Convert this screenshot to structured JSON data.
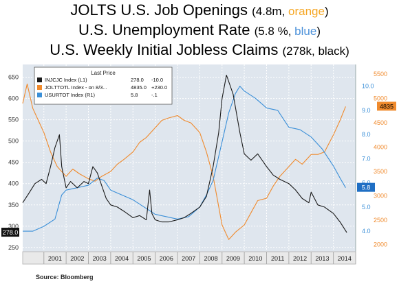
{
  "titles": {
    "line1_main": "JOLTS U.S. Job Openings",
    "line1_paren_open": "(4.8m, ",
    "line1_colorword": "orange",
    "line1_paren_close": ")",
    "line2_main": "U.S. Unemployment Rate",
    "line2_paren_open": "(5.8 %, ",
    "line2_colorword": "blue",
    "line2_paren_close": ")",
    "line3_main": "U.S. Weekly Initial Jobless Claims",
    "line3_paren": "(278k, black)"
  },
  "source": "Source:  Bloomberg",
  "colors": {
    "jobless": "#1a1a1a",
    "jolts": "#f08a2c",
    "unemployment": "#3a8fd8",
    "plot_background": "#dfe6ee"
  },
  "chart_data": {
    "type": "line",
    "x_labels": [
      "2001",
      "2002",
      "2003",
      "2004",
      "2005",
      "2006",
      "2007",
      "2008",
      "2009",
      "2010",
      "2011",
      "2012",
      "2013",
      "2014"
    ],
    "xlim": [
      2000.05,
      2015.0
    ],
    "legend": {
      "header": "Last Price",
      "position": "top-left",
      "rows": [
        {
          "name": "INJCJC Index  (L1)",
          "last": "278.0",
          "change": "-10.0"
        },
        {
          "name": "JOLTTOTL Index - on 8/3...",
          "last": "4835.0",
          "change": "+230.0"
        },
        {
          "name": "USURTOT Index  (R1)",
          "last": "5.8",
          "change": "-.1"
        }
      ]
    },
    "axes": {
      "left": {
        "lim": [
          240,
          680
        ],
        "ticks": [
          250,
          300,
          350,
          400,
          450,
          500,
          550,
          600,
          650
        ],
        "series": "jobless"
      },
      "right1": {
        "lim": [
          3.15,
          10.9
        ],
        "ticks": [
          "4.0",
          "5.0",
          "6.0",
          "7.0",
          "8.0",
          "9.0",
          "10.0"
        ],
        "series": "unemployment"
      },
      "right2": {
        "lim": [
          1850,
          5700
        ],
        "ticks": [
          "2000",
          "2500",
          "3000",
          "3500",
          "4000",
          "4500",
          "5000",
          "5500"
        ],
        "series": "jolts"
      }
    },
    "last_value_labels": {
      "jobless": "278.0",
      "jolts": "4835",
      "unemployment": "5.8"
    },
    "series": [
      {
        "key": "jobless",
        "axis": "left",
        "x": [
          2000.05,
          2000.3,
          2000.6,
          2000.9,
          2001.1,
          2001.3,
          2001.5,
          2001.7,
          2001.8,
          2002.0,
          2002.2,
          2002.5,
          2002.8,
          2003.0,
          2003.2,
          2003.4,
          2003.6,
          2003.8,
          2004.0,
          2004.3,
          2004.6,
          2005.0,
          2005.3,
          2005.6,
          2005.75,
          2005.85,
          2006.0,
          2006.3,
          2006.6,
          2007.0,
          2007.3,
          2007.6,
          2008.0,
          2008.3,
          2008.6,
          2008.85,
          2009.0,
          2009.2,
          2009.5,
          2009.8,
          2010.0,
          2010.3,
          2010.6,
          2011.0,
          2011.3,
          2011.6,
          2012.0,
          2012.3,
          2012.6,
          2012.9,
          2013.0,
          2013.3,
          2013.6,
          2014.0,
          2014.3,
          2014.6
        ],
        "y": [
          355,
          375,
          400,
          410,
          400,
          440,
          485,
          515,
          440,
          390,
          405,
          390,
          405,
          400,
          440,
          425,
          395,
          365,
          350,
          345,
          335,
          320,
          325,
          315,
          385,
          330,
          315,
          310,
          310,
          315,
          320,
          330,
          345,
          370,
          440,
          520,
          600,
          655,
          610,
          520,
          470,
          455,
          470,
          440,
          420,
          410,
          400,
          385,
          365,
          355,
          380,
          350,
          345,
          330,
          310,
          285
        ]
      },
      {
        "key": "jolts",
        "axis": "right2",
        "x": [
          2000.05,
          2000.25,
          2000.5,
          2000.8,
          2001.0,
          2001.3,
          2001.6,
          2002.0,
          2002.3,
          2002.6,
          2003.0,
          2003.3,
          2003.6,
          2004.0,
          2004.3,
          2004.6,
          2005.0,
          2005.3,
          2005.6,
          2006.0,
          2006.3,
          2006.6,
          2007.0,
          2007.3,
          2007.6,
          2008.0,
          2008.3,
          2008.6,
          2009.0,
          2009.3,
          2009.6,
          2010.0,
          2010.3,
          2010.6,
          2011.0,
          2011.3,
          2011.6,
          2012.0,
          2012.3,
          2012.6,
          2013.0,
          2013.3,
          2013.6,
          2014.0,
          2014.3,
          2014.55
        ],
        "y": [
          4900,
          5300,
          4800,
          4500,
          4300,
          3900,
          3600,
          3400,
          3550,
          3450,
          3350,
          3300,
          3400,
          3500,
          3650,
          3750,
          3900,
          4100,
          4200,
          4400,
          4550,
          4600,
          4650,
          4550,
          4500,
          4300,
          3900,
          3400,
          2400,
          2100,
          2250,
          2400,
          2650,
          2900,
          2950,
          3200,
          3400,
          3600,
          3750,
          3650,
          3850,
          3850,
          3900,
          4250,
          4550,
          4835
        ]
      },
      {
        "key": "unemployment",
        "axis": "right1",
        "x": [
          2000.05,
          2000.5,
          2001.0,
          2001.5,
          2001.8,
          2002.0,
          2002.5,
          2003.0,
          2003.4,
          2003.7,
          2004.0,
          2004.5,
          2005.0,
          2005.5,
          2006.0,
          2006.5,
          2007.0,
          2007.5,
          2008.0,
          2008.3,
          2008.6,
          2009.0,
          2009.3,
          2009.6,
          2009.8,
          2010.0,
          2010.5,
          2011.0,
          2011.5,
          2012.0,
          2012.5,
          2013.0,
          2013.5,
          2014.0,
          2014.3,
          2014.55
        ],
        "y": [
          4.0,
          4.0,
          4.2,
          4.5,
          5.5,
          5.7,
          5.8,
          5.9,
          6.2,
          6.1,
          5.7,
          5.5,
          5.3,
          5.0,
          4.7,
          4.6,
          4.5,
          4.6,
          5.0,
          5.5,
          6.1,
          7.7,
          8.9,
          9.7,
          10.0,
          9.8,
          9.5,
          9.1,
          9.0,
          8.3,
          8.2,
          7.9,
          7.4,
          6.7,
          6.2,
          5.8
        ]
      }
    ]
  }
}
